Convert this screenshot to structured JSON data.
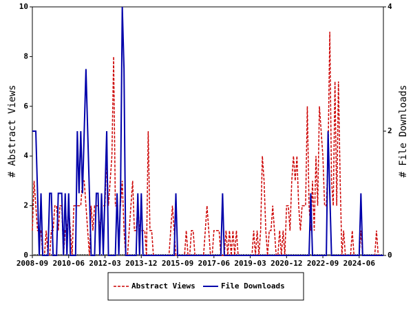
{
  "chart_data": {
    "type": "line",
    "y_label": "# Abstract Views",
    "y2_label": "# File Downloads",
    "ylim": [
      0,
      10
    ],
    "yticks": [
      0,
      2,
      4,
      6,
      8,
      10
    ],
    "y2lim": [
      0,
      4
    ],
    "y2ticks": [
      0,
      2,
      4
    ],
    "legend": "bottom",
    "categories": [
      "2008-09",
      null,
      null,
      null,
      null,
      null,
      null,
      null,
      null,
      null,
      null,
      null,
      null,
      null,
      null,
      null,
      null,
      null,
      null,
      null,
      null,
      "2010-06",
      null,
      null,
      null,
      null,
      null,
      null,
      null,
      null,
      null,
      null,
      null,
      null,
      null,
      null,
      null,
      null,
      null,
      null,
      null,
      null,
      "2012-03",
      null,
      null,
      null,
      null,
      null,
      null,
      null,
      null,
      null,
      null,
      null,
      null,
      null,
      null,
      null,
      null,
      null,
      null,
      null,
      null,
      "2013-12",
      null,
      null,
      null,
      null,
      null,
      null,
      null,
      null,
      null,
      null,
      null,
      null,
      null,
      null,
      null,
      null,
      null,
      null,
      null,
      null,
      "2015-09",
      null,
      null,
      null,
      null,
      null,
      null,
      null,
      null,
      null,
      null,
      null,
      null,
      null,
      null,
      null,
      null,
      null,
      null,
      null,
      null,
      "2017-06",
      null,
      null,
      null,
      null,
      null,
      null,
      null,
      null,
      null,
      null,
      null,
      null,
      null,
      null,
      null,
      null,
      null,
      null,
      null,
      null,
      "2019-03",
      null,
      null,
      null,
      null,
      null,
      null,
      null,
      null,
      null,
      null,
      null,
      null,
      null,
      null,
      null,
      null,
      null,
      null,
      null,
      null,
      "2020-12",
      null,
      null,
      null,
      null,
      null,
      null,
      null,
      null,
      null,
      null,
      null,
      null,
      null,
      null,
      null,
      null,
      null,
      null,
      null,
      null,
      "2022-09",
      null,
      null,
      null,
      null,
      null,
      null,
      null,
      null,
      null,
      null,
      null,
      null,
      null,
      null,
      null,
      null,
      null,
      null,
      null,
      null,
      "2024-06",
      null,
      null,
      null,
      null,
      null,
      null,
      null,
      null,
      null,
      null,
      null,
      null,
      null,
      null
    ],
    "series": [
      {
        "name": "Abstract Views",
        "color": "#cc0000",
        "dash": true,
        "values": [
          1,
          3,
          2,
          1,
          1,
          1,
          0,
          0,
          1,
          0,
          0,
          1,
          1,
          2,
          2,
          1,
          2,
          2,
          0,
          1,
          1,
          2,
          1,
          0,
          2,
          2,
          2,
          2,
          2,
          3,
          3,
          2,
          1,
          0,
          2,
          1,
          2,
          2,
          2,
          1,
          2,
          2,
          2,
          4,
          2,
          3,
          4,
          8,
          2,
          2,
          2,
          2,
          3,
          1,
          0,
          0,
          1,
          2,
          3,
          1,
          1,
          2,
          1,
          1,
          1,
          1,
          0,
          5,
          1,
          1,
          0,
          0,
          0,
          0,
          0,
          0,
          0,
          0,
          0,
          0,
          1,
          2,
          1,
          0,
          0,
          0,
          0,
          0,
          0,
          1,
          0,
          0,
          1,
          1,
          0,
          0,
          0,
          0,
          0,
          0,
          1,
          2,
          1,
          0,
          0,
          1,
          1,
          1,
          1,
          0,
          0,
          0,
          1,
          0,
          1,
          0,
          1,
          0,
          1,
          0,
          0,
          0,
          0,
          0,
          0,
          0,
          0,
          0,
          1,
          0,
          1,
          0,
          1,
          4,
          3,
          1,
          0,
          1,
          1,
          2,
          1,
          0,
          0,
          1,
          0,
          1,
          0,
          2,
          2,
          1,
          3,
          4,
          3,
          4,
          2,
          1,
          2,
          2,
          2,
          6,
          2,
          1,
          3,
          1,
          4,
          2,
          6,
          5,
          4,
          2,
          2,
          4,
          9,
          3,
          2,
          7,
          2,
          7,
          3,
          0,
          1,
          0,
          0,
          0,
          0,
          1,
          0,
          0,
          0,
          0,
          1,
          0,
          0,
          0,
          0,
          0,
          0,
          0,
          0,
          1,
          0,
          0,
          0,
          0
        ]
      },
      {
        "name": "File Downloads",
        "color": "#0000aa",
        "dash": false,
        "axis": "y2",
        "values": [
          2,
          2,
          2,
          1,
          0,
          1,
          0,
          0,
          0,
          0,
          1,
          1,
          0,
          0,
          0,
          1,
          1,
          1,
          0,
          1,
          0,
          1,
          0,
          0,
          0,
          0,
          2,
          1,
          2,
          1,
          2,
          3,
          2,
          1,
          0,
          0,
          0,
          1,
          1,
          0,
          1,
          0,
          1,
          2,
          0,
          0,
          0,
          0,
          0,
          1,
          0,
          1,
          4,
          3,
          0,
          0,
          0,
          0,
          0,
          0,
          0,
          1,
          0,
          1,
          0,
          0,
          0,
          0,
          0,
          0,
          0,
          0,
          0,
          0,
          0,
          0,
          0,
          0,
          0,
          0,
          0,
          0,
          0,
          1,
          0,
          0,
          0,
          0,
          0,
          0,
          0,
          0,
          0,
          0,
          0,
          0,
          0,
          0,
          0,
          0,
          0,
          0,
          0,
          0,
          0,
          0,
          0,
          0,
          0,
          0,
          1,
          0,
          0,
          0,
          0,
          0,
          0,
          0,
          0,
          0,
          0,
          0,
          0,
          0,
          0,
          0,
          0,
          0,
          0,
          0,
          0,
          0,
          0,
          0,
          0,
          0,
          0,
          0,
          0,
          0,
          0,
          0,
          0,
          0,
          0,
          0,
          0,
          0,
          0,
          0,
          0,
          0,
          0,
          0,
          0,
          0,
          0,
          0,
          0,
          0,
          0,
          1,
          0,
          0,
          0,
          0,
          0,
          0,
          0,
          0,
          0,
          2,
          1,
          0,
          0,
          0,
          0,
          0,
          0,
          0,
          0,
          0,
          0,
          0,
          0,
          0,
          0,
          0,
          0,
          0,
          1,
          0,
          0,
          0,
          0,
          0,
          0,
          0,
          0,
          0,
          0,
          0,
          0,
          0
        ]
      }
    ]
  }
}
